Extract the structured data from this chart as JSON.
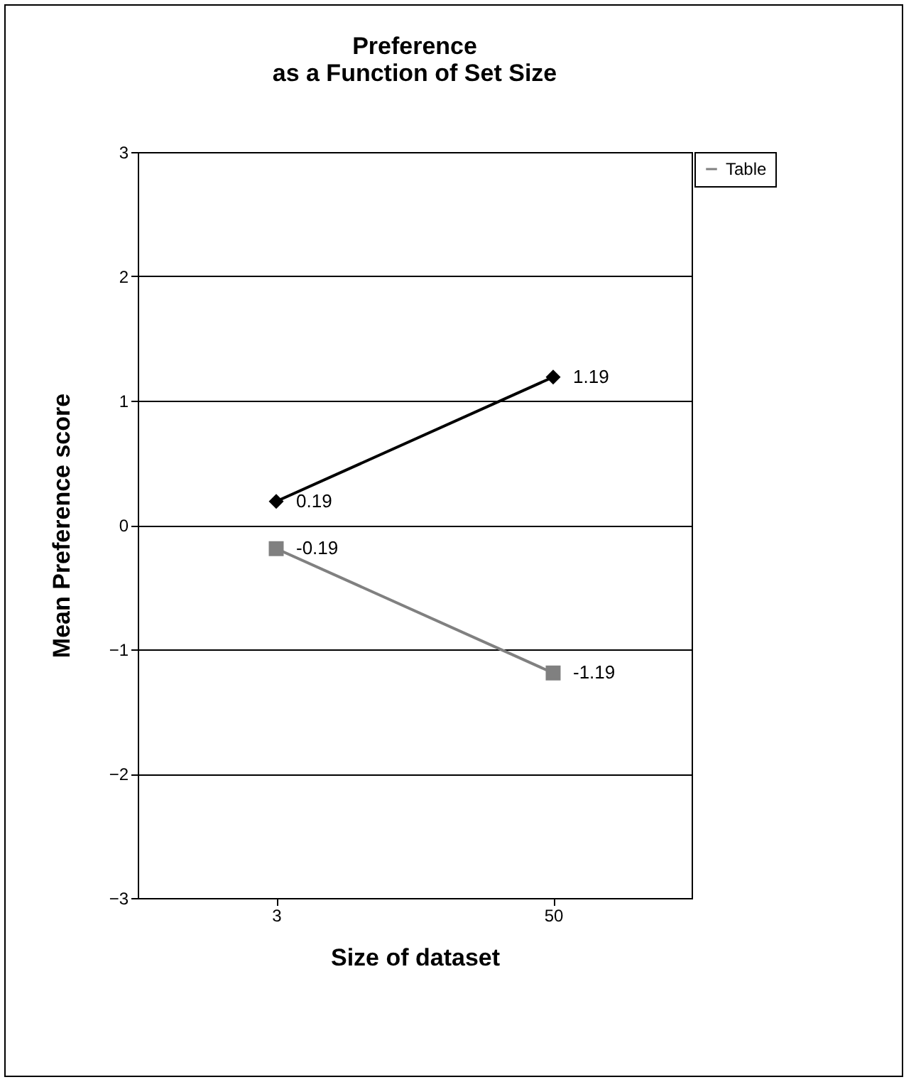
{
  "chart_data": {
    "type": "line",
    "title": [
      "Preference",
      "as a Function of Set Size"
    ],
    "xlabel": "Size of dataset",
    "ylabel": "Mean Preference score",
    "categories": [
      "3",
      "50"
    ],
    "series": [
      {
        "color": "#000000",
        "marker": "diamond",
        "values": [
          0.19,
          1.19
        ]
      },
      {
        "name": "Table",
        "color": "#808080",
        "marker": "square",
        "values": [
          -0.19,
          -1.19
        ]
      }
    ],
    "ylim": [
      -3,
      3
    ],
    "yticks": [
      -3,
      -2,
      -1,
      0,
      1,
      2,
      3
    ],
    "grid": "y",
    "legend": "right",
    "data_labels": true
  }
}
